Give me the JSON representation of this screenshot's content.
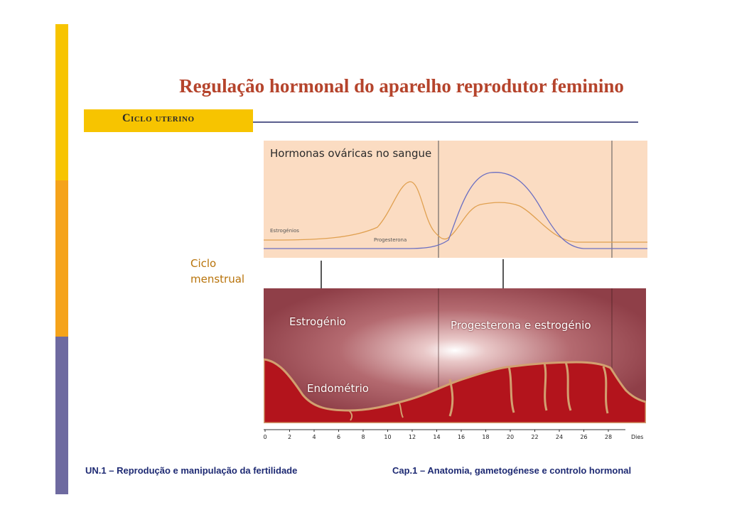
{
  "slide": {
    "title": "Regulação hormonal do aparelho reprodutor feminino",
    "section": "Ciclo uterino"
  },
  "hormone_chart": {
    "title": "Hormonas ováricas no sangue",
    "estrogen_label": "Estrogénios",
    "progesterone_label": "Progesterona",
    "colors": {
      "background": "#fbdcc2",
      "estrogen": "#e0a050",
      "progesterone": "#6b6fc2"
    }
  },
  "ciclo": {
    "line1": "Ciclo",
    "line2": "menstrual"
  },
  "endometrium": {
    "phase1": "Estrogénio",
    "phase2": "Progesterona e estrogénio",
    "tissue": "Endométrio",
    "colors": {
      "background": "#9c4a52",
      "tissue": "#b3141c",
      "border": "#d2a070"
    }
  },
  "axis": {
    "ticks": [
      "0",
      "2",
      "4",
      "6",
      "8",
      "10",
      "12",
      "14",
      "16",
      "18",
      "20",
      "22",
      "24",
      "26",
      "28"
    ],
    "unit": "Dies"
  },
  "footer": {
    "left": "UN.1 – Reprodução e manipulação da fertilidade",
    "right": "Cap.1 – Anatomia, gametogénese e controlo hormonal"
  },
  "colors": {
    "title": "#b5442c",
    "accent_yellow": "#f7c400",
    "accent_orange": "#f5a31a",
    "accent_purple": "#6e6aa0",
    "footer": "#1e2a73"
  }
}
